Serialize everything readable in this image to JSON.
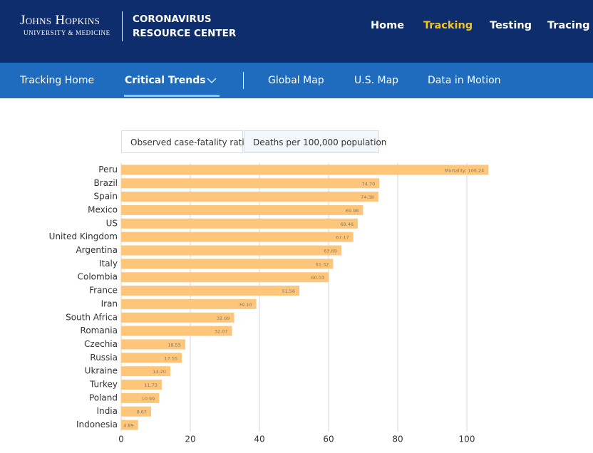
{
  "header": {
    "logo_line1": "Johns Hopkins",
    "logo_line2": "University & Medicine",
    "site_line1": "CORONAVIRUS",
    "site_line2": "RESOURCE CENTER",
    "nav": [
      "Home",
      "Tracking",
      "Testing",
      "Tracing"
    ]
  },
  "subnav": [
    "Tracking Home",
    "Critical Trends",
    "Global Map",
    "U.S. Map",
    "Data in Motion"
  ],
  "tabs": [
    "Observed case-fatality ratio",
    "Deaths per 100,000 population"
  ],
  "chart_data": {
    "type": "hbar",
    "color": "#fdc67a",
    "categories": [
      "Peru",
      "Brazil",
      "Spain",
      "Mexico",
      "US",
      "United Kingdom",
      "Argentina",
      "Italy",
      "Colombia",
      "France",
      "Iran",
      "South Africa",
      "Romania",
      "Czechia",
      "Russia",
      "Ukraine",
      "Turkey",
      "Poland",
      "India",
      "Indonesia"
    ],
    "values": [
      106.24,
      74.7,
      74.38,
      69.98,
      68.46,
      67.17,
      63.69,
      61.32,
      60.03,
      51.56,
      39.1,
      32.69,
      32.07,
      18.55,
      17.55,
      14.2,
      11.73,
      10.99,
      8.67,
      4.89
    ],
    "value_labels": [
      "Mortality: 106.24",
      "74.70",
      "74.38",
      "69.98",
      "68.46",
      "67.17",
      "63.69",
      "61.32",
      "60.03",
      "51.56",
      "39.10",
      "32.69",
      "32.07",
      "18.55",
      "17.55",
      "14.20",
      "11.73",
      "10.99",
      "8.67",
      "4.89"
    ],
    "xlim": [
      0,
      110
    ],
    "xticks": [
      0,
      20,
      40,
      60,
      80,
      100
    ],
    "grid": true
  }
}
